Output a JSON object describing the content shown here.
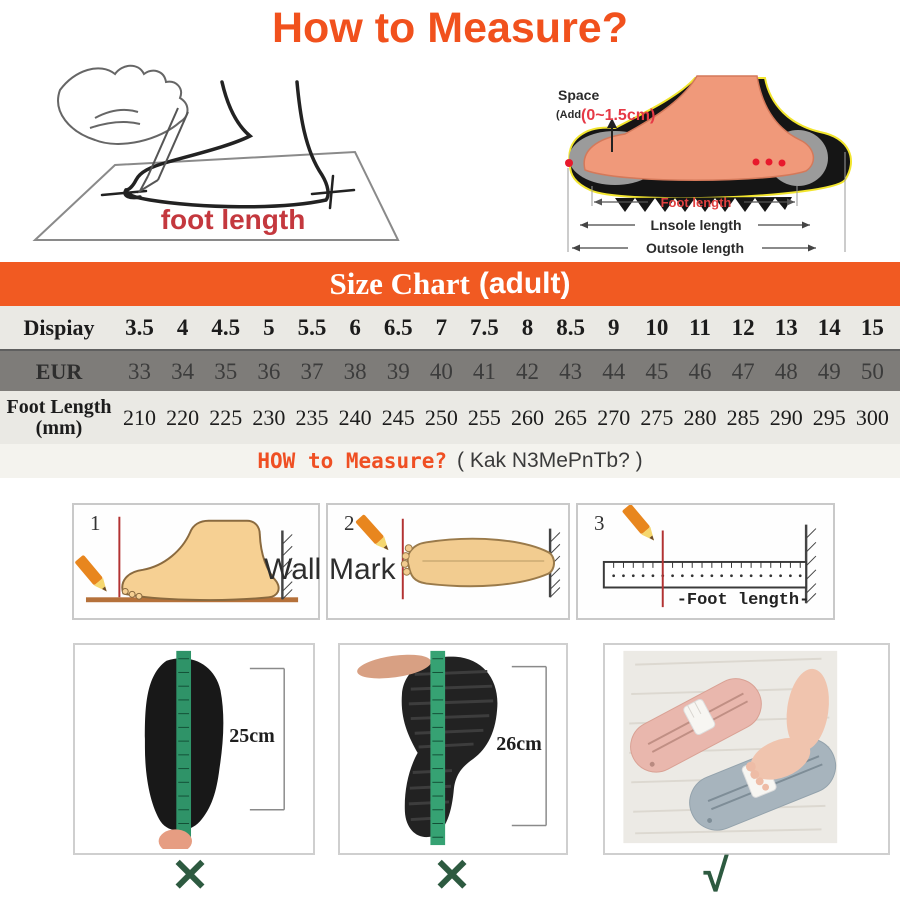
{
  "title": "How to Measure?",
  "colors": {
    "accent_orange": "#f1511d",
    "banner_orange": "#f15a22",
    "table_gray": "#7e7c79",
    "label_red": "#c4383e",
    "mark_green": "#2d5a40",
    "tape_green": "#2f9368"
  },
  "trace_illustration": {
    "caption": "foot length"
  },
  "foot_diagram": {
    "space_label": "Space",
    "space_add_prefix": "(Add",
    "space_add_value": "(0~1.5cm)",
    "dim_foot": "Foot length",
    "dim_insole": "Lnsole length",
    "dim_outsole": "Outsole length"
  },
  "size_chart": {
    "title": "Size Chart",
    "subtitle": "(adult)",
    "rows": [
      {
        "label": "Dispiay",
        "values": [
          "3.5",
          "4",
          "4.5",
          "5",
          "5.5",
          "6",
          "6.5",
          "7",
          "7.5",
          "8",
          "8.5",
          "9",
          "10",
          "11",
          "12",
          "13",
          "14",
          "15"
        ]
      },
      {
        "label": "EUR",
        "values": [
          "33",
          "34",
          "35",
          "36",
          "37",
          "38",
          "39",
          "40",
          "41",
          "42",
          "43",
          "44",
          "45",
          "46",
          "47",
          "48",
          "49",
          "50"
        ]
      },
      {
        "label": "Foot Length",
        "label_unit": "(mm)",
        "values": [
          "210",
          "220",
          "225",
          "230",
          "235",
          "240",
          "245",
          "250",
          "255",
          "260",
          "265",
          "270",
          "275",
          "280",
          "285",
          "290",
          "295",
          "300"
        ]
      }
    ]
  },
  "how_to_measure": {
    "highlight": "HOW to Measure?",
    "translit": "( Kak N3MePnTb? )"
  },
  "steps": [
    {
      "number": "1",
      "label": "Wall"
    },
    {
      "number": "2",
      "label": "Mark"
    },
    {
      "number": "3",
      "label": "-Foot length-"
    }
  ],
  "examples": [
    {
      "measurement": "25cm",
      "verdict": "✕"
    },
    {
      "measurement": "26cm",
      "verdict": "✕"
    },
    {
      "verdict": "√"
    }
  ]
}
